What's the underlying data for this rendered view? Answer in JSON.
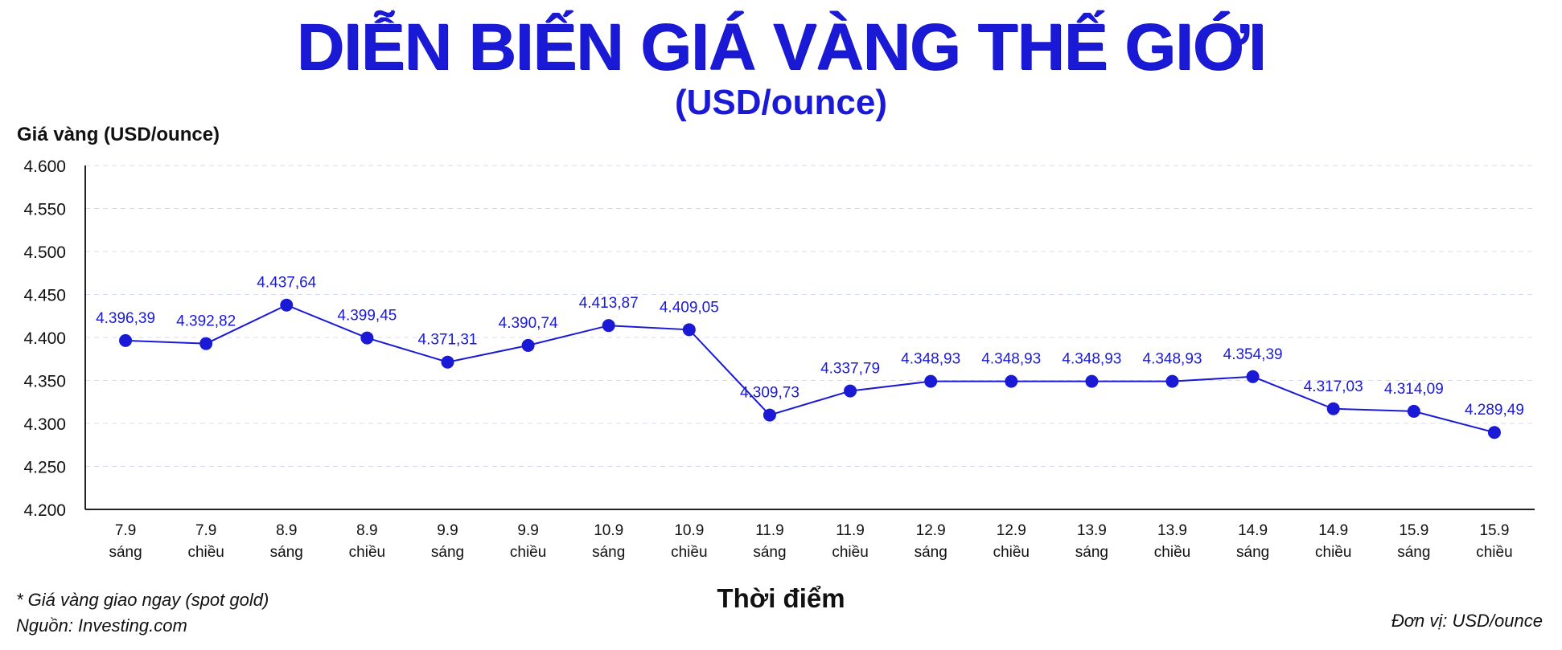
{
  "chart_data": {
    "type": "line",
    "title": "DIỄN BIẾN GIÁ VÀNG THẾ GIỚI",
    "subtitle": "(USD/ounce)",
    "ylabel": "Giá vàng (USD/ounce)",
    "xlabel": "Thời điểm",
    "ylim": [
      4200,
      4600
    ],
    "yticks": [
      {
        "value": 4200,
        "label": "4.200"
      },
      {
        "value": 4250,
        "label": "4.250"
      },
      {
        "value": 4300,
        "label": "4.300"
      },
      {
        "value": 4350,
        "label": "4.350"
      },
      {
        "value": 4400,
        "label": "4.400"
      },
      {
        "value": 4450,
        "label": "4.450"
      },
      {
        "value": 4500,
        "label": "4.500"
      },
      {
        "value": 4550,
        "label": "4.550"
      },
      {
        "value": 4600,
        "label": "4.600"
      }
    ],
    "grid": true,
    "color": "#1a1ad6",
    "points": [
      {
        "date": "7.9",
        "session": "sáng",
        "value": 4396.39,
        "label": "4.396,39"
      },
      {
        "date": "7.9",
        "session": "chiều",
        "value": 4392.82,
        "label": "4.392,82"
      },
      {
        "date": "8.9",
        "session": "sáng",
        "value": 4437.64,
        "label": "4.437,64"
      },
      {
        "date": "8.9",
        "session": "chiều",
        "value": 4399.45,
        "label": "4.399,45"
      },
      {
        "date": "9.9",
        "session": "sáng",
        "value": 4371.31,
        "label": "4.371,31"
      },
      {
        "date": "9.9",
        "session": "chiều",
        "value": 4390.74,
        "label": "4.390,74"
      },
      {
        "date": "10.9",
        "session": "sáng",
        "value": 4413.87,
        "label": "4.413,87"
      },
      {
        "date": "10.9",
        "session": "chiều",
        "value": 4409.05,
        "label": "4.409,05"
      },
      {
        "date": "11.9",
        "session": "sáng",
        "value": 4309.73,
        "label": "4.309,73"
      },
      {
        "date": "11.9",
        "session": "chiều",
        "value": 4337.79,
        "label": "4.337,79"
      },
      {
        "date": "12.9",
        "session": "sáng",
        "value": 4348.93,
        "label": "4.348,93"
      },
      {
        "date": "12.9",
        "session": "chiều",
        "value": 4348.93,
        "label": "4.348,93"
      },
      {
        "date": "13.9",
        "session": "sáng",
        "value": 4348.93,
        "label": "4.348,93"
      },
      {
        "date": "13.9",
        "session": "chiều",
        "value": 4348.93,
        "label": "4.348,93"
      },
      {
        "date": "14.9",
        "session": "sáng",
        "value": 4354.39,
        "label": "4.354,39"
      },
      {
        "date": "14.9",
        "session": "chiều",
        "value": 4317.03,
        "label": "4.317,03"
      },
      {
        "date": "15.9",
        "session": "sáng",
        "value": 4314.09,
        "label": "4.314,09"
      },
      {
        "date": "15.9",
        "session": "chiều",
        "value": 4289.49,
        "label": "4.289,49"
      }
    ]
  },
  "footer": {
    "note": "* Giá vàng giao ngay (spot gold)",
    "source": "Nguồn: Investing.com",
    "unit": "Đơn vị: USD/ounce"
  }
}
